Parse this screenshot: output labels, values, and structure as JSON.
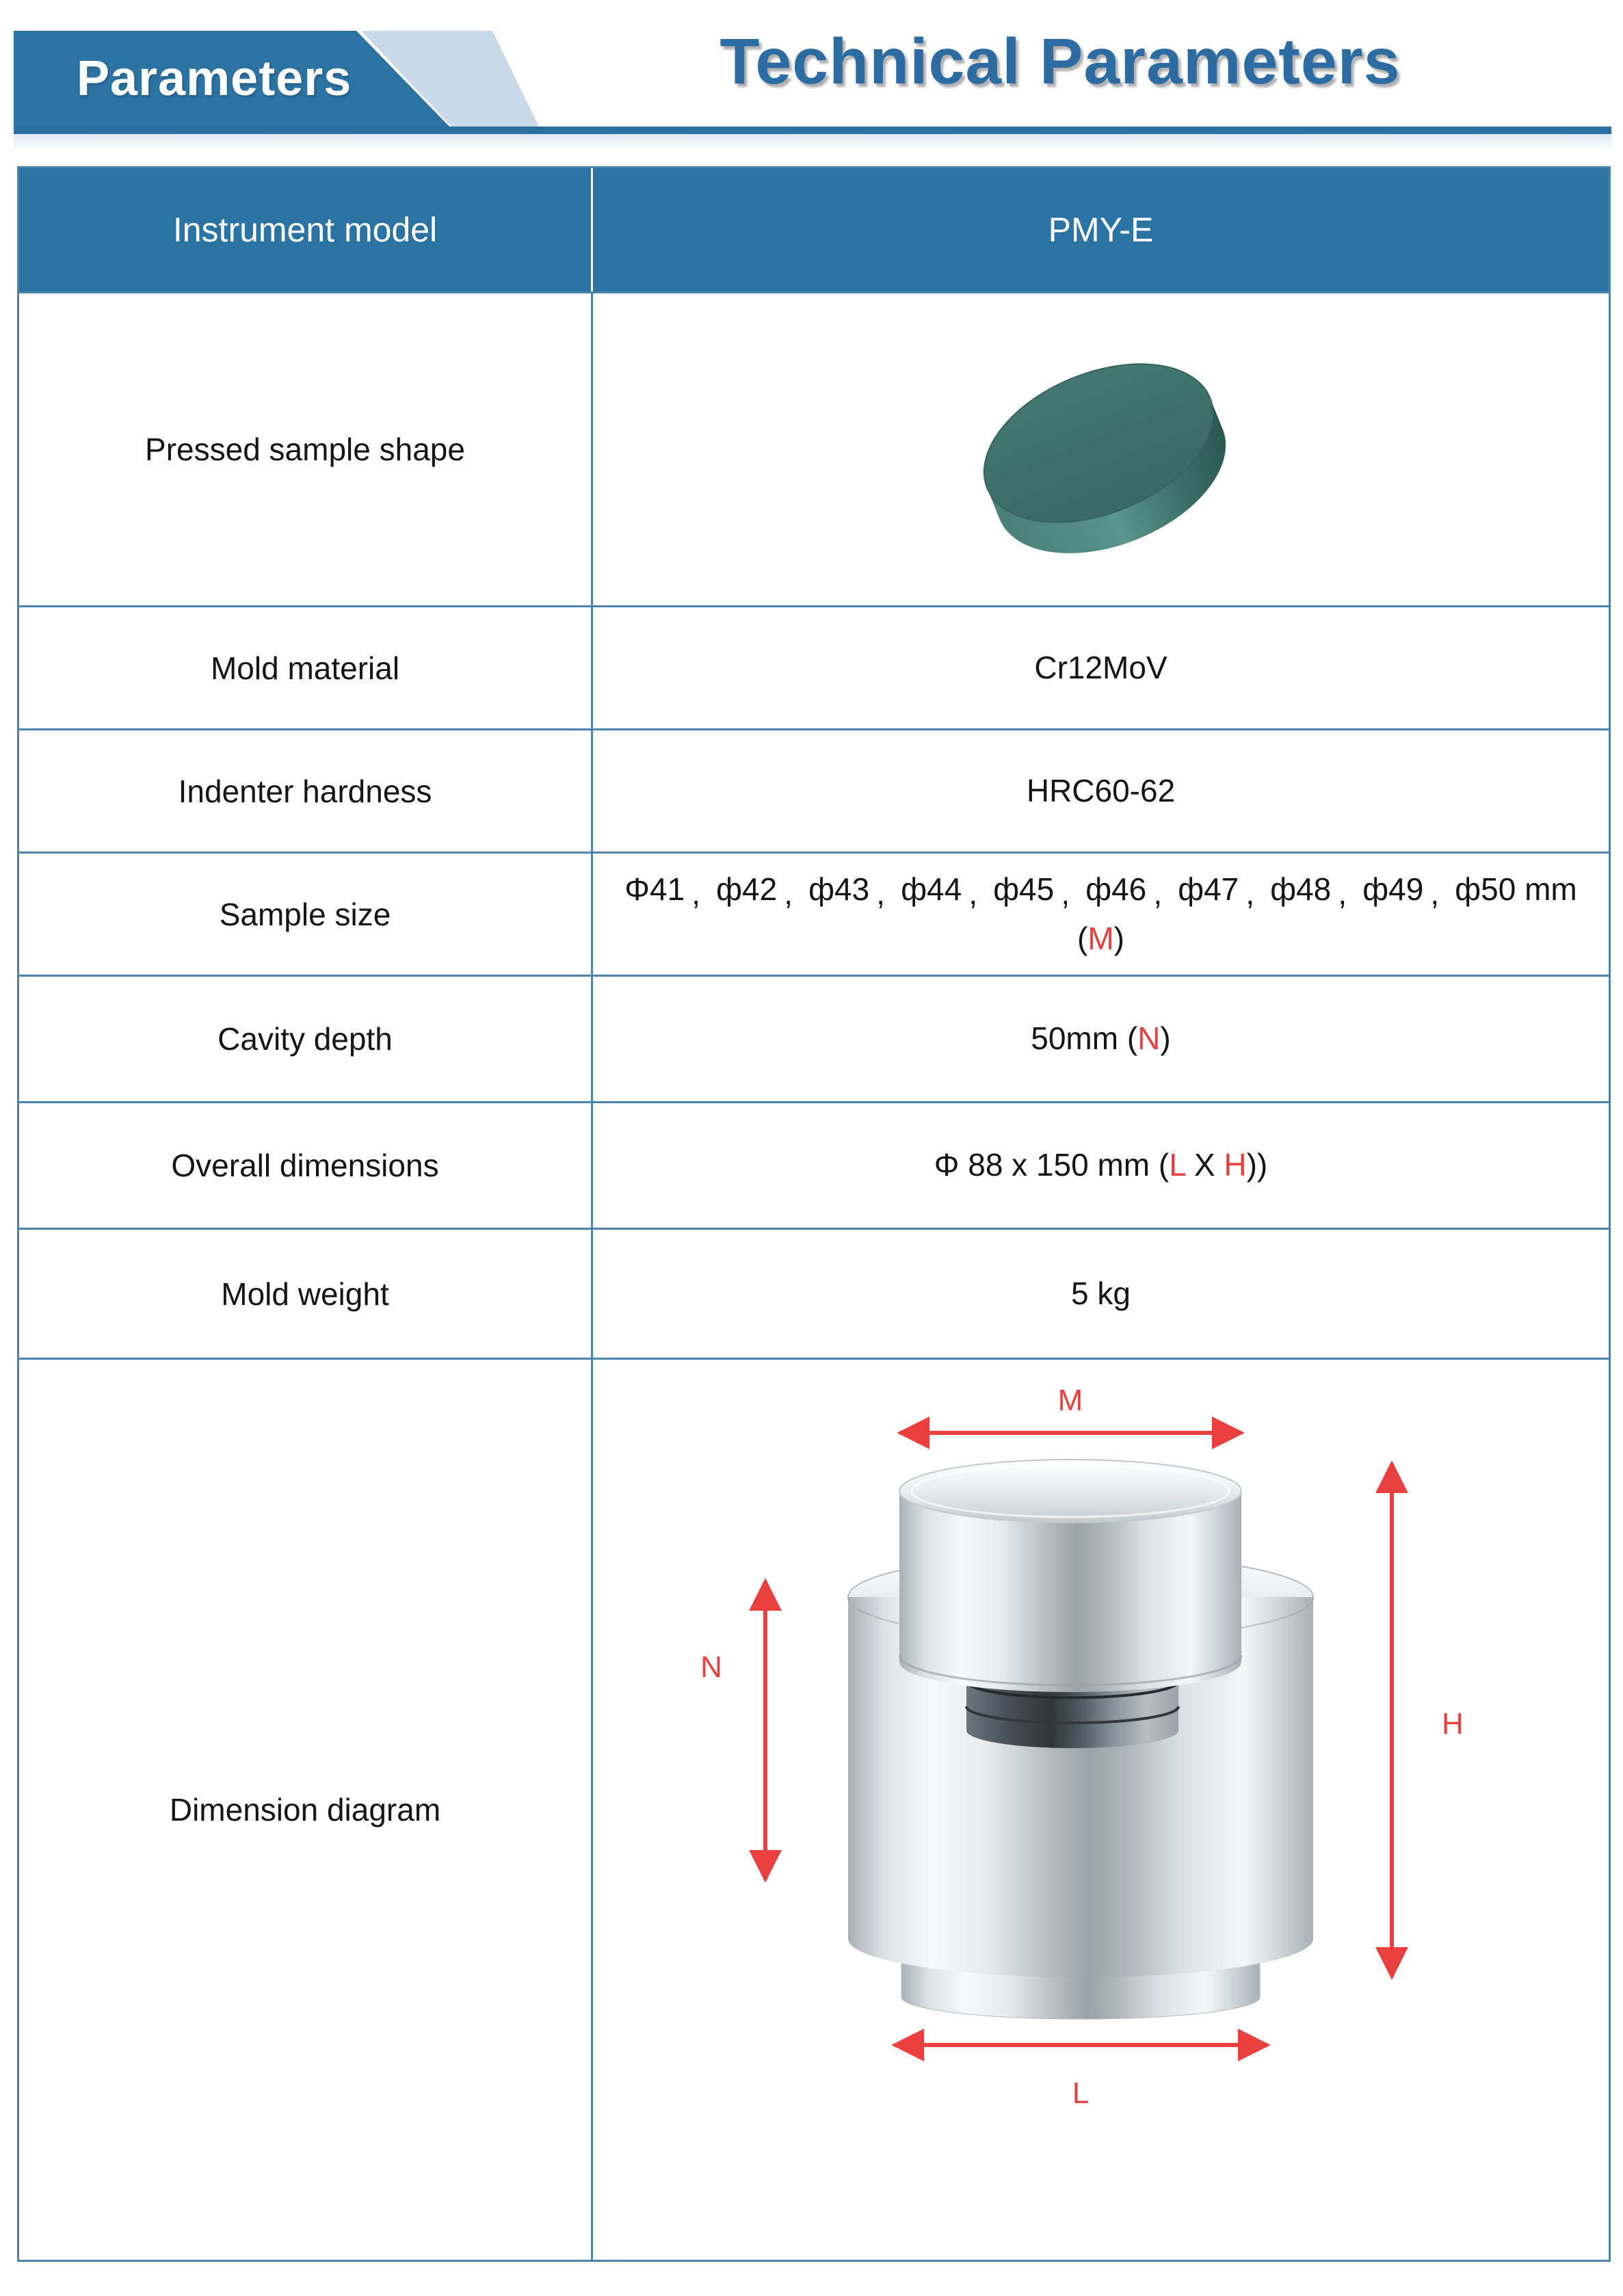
{
  "banner": {
    "label": "Parameters"
  },
  "title": "Technical Parameters",
  "colors": {
    "banner_blue": "#2b73a3",
    "underline_blue": "#2a6f9f",
    "light_parallelogram": "#c9d9e8",
    "table_border_blue": "#4b83af",
    "title_blue": "#2d6ba3",
    "accent_red": "#e9403f",
    "sample_teal": "#3f6f6a"
  },
  "table": {
    "header": {
      "col1": "Instrument model",
      "col2": "PMY-E"
    },
    "rows": [
      {
        "label": "Pressed sample shape",
        "type": "sample_image",
        "image": "teal-disc"
      },
      {
        "label": "Mold material",
        "parts": [
          {
            "text": "Cr12MoV"
          }
        ]
      },
      {
        "label": "Indenter hardness",
        "parts": [
          {
            "text": "HRC60-62"
          }
        ]
      },
      {
        "label": "Sample size",
        "parts": [
          {
            "text": "Φ41、ф42、ф43、ф44、ф45、ф46、ф47、ф48、ф49、ф50 mm ("
          },
          {
            "text": "M",
            "red": true
          },
          {
            "text": ")"
          }
        ]
      },
      {
        "label": "Cavity depth",
        "parts": [
          {
            "text": "50mm ("
          },
          {
            "text": "N",
            "red": true
          },
          {
            "text": ")"
          }
        ]
      },
      {
        "label": "Overall dimensions",
        "parts": [
          {
            "text": "Φ 88 x 150 mm ("
          },
          {
            "text": "L",
            "red": true
          },
          {
            "text": " X "
          },
          {
            "text": "H",
            "red": true
          },
          {
            "text": "))"
          }
        ]
      },
      {
        "label": "Mold weight",
        "parts": [
          {
            "text": "5 kg"
          }
        ]
      },
      {
        "label": "Dimension diagram",
        "type": "diagram"
      }
    ],
    "dim_labels": {
      "m": "M",
      "n": "N",
      "h": "H",
      "l": "L"
    }
  }
}
